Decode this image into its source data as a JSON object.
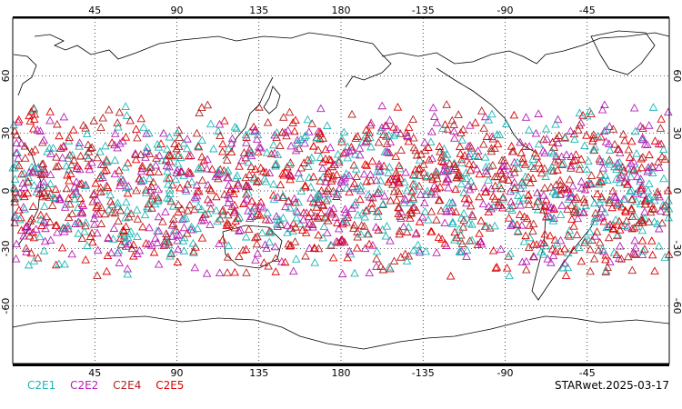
{
  "map": {
    "projection": "cylindrical-equidistant",
    "center_longitude": 180,
    "lat_range": [
      -90,
      90
    ],
    "lon_range": [
      0,
      360
    ],
    "grid": "dotted",
    "top_lon_labels": [
      "45",
      "90",
      "135",
      "180",
      "-135",
      "-90",
      "-45"
    ],
    "bottom_lon_labels": [
      "45",
      "90",
      "135",
      "180",
      "-135",
      "-90",
      "-45"
    ],
    "lat_labels": [
      "60",
      "30",
      "0",
      "-30",
      "-60"
    ],
    "marker": "open-triangle"
  },
  "legend": {
    "items": [
      {
        "label": "C2E1",
        "color": "#1fb5b5"
      },
      {
        "label": "C2E2",
        "color": "#b51fb5"
      },
      {
        "label": "C2E4",
        "color": "#b51f1f"
      },
      {
        "label": "C2E5",
        "color": "#e00000"
      }
    ]
  },
  "stamp": "STARwet.2025-03-17"
}
